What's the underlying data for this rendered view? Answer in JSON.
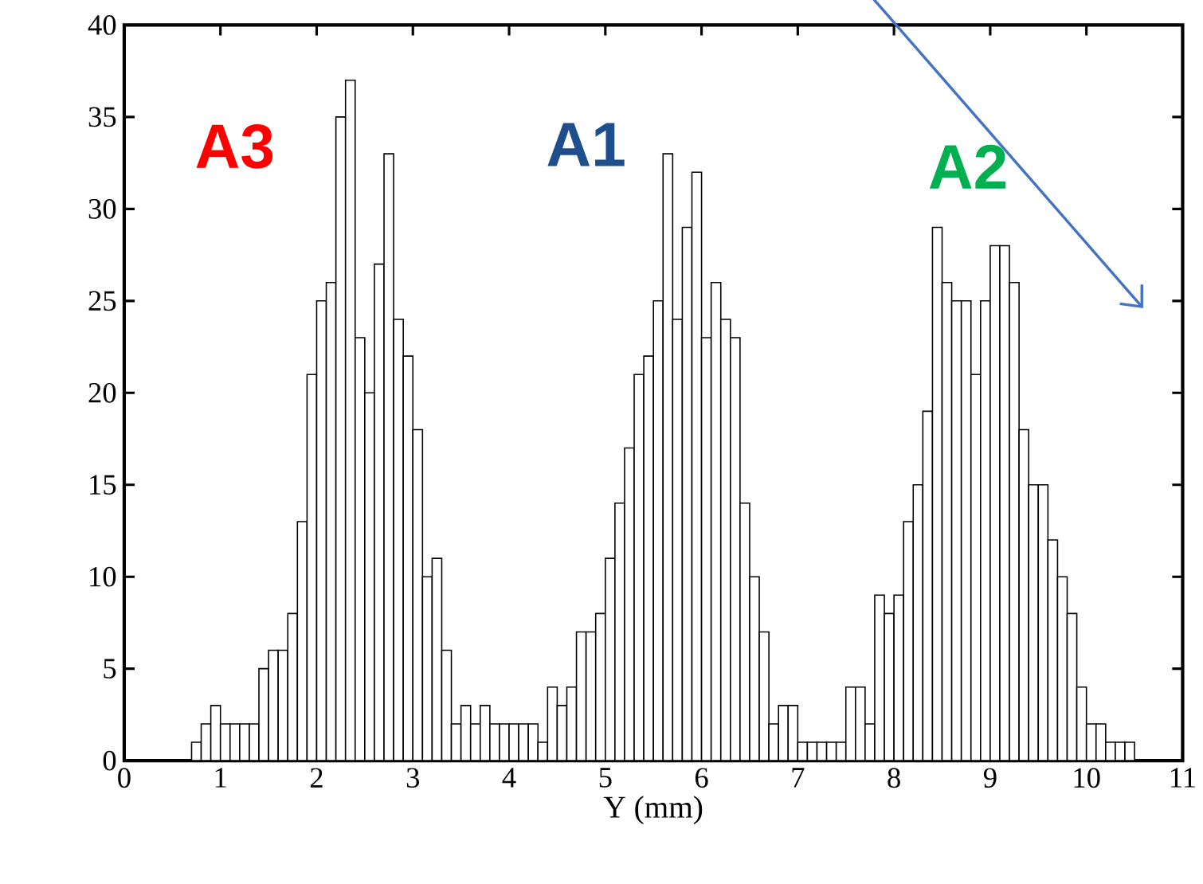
{
  "chart_data": {
    "type": "histogram",
    "xlabel": "Y (mm)",
    "bins": [
      0.7,
      0.8,
      0.9,
      1.0,
      1.1,
      1.2,
      1.3,
      1.4,
      1.5,
      1.6,
      1.7,
      1.8,
      1.9,
      2.0,
      2.1,
      2.2,
      2.3,
      2.4,
      2.5,
      2.6,
      2.7,
      2.8,
      2.9,
      3.0,
      3.1,
      3.2,
      3.3,
      3.4,
      3.5,
      3.6,
      3.7,
      3.8,
      3.9,
      4.0,
      4.1,
      4.2,
      4.3,
      4.4,
      4.5,
      4.6,
      4.7,
      4.8,
      4.9,
      5.0,
      5.1,
      5.2,
      5.3,
      5.4,
      5.5,
      5.6,
      5.7,
      5.8,
      5.9,
      6.0,
      6.1,
      6.2,
      6.3,
      6.4,
      6.5,
      6.6,
      6.7,
      6.8,
      6.9,
      7.0,
      7.1,
      7.2,
      7.3,
      7.4,
      7.5,
      7.6,
      7.7,
      7.8,
      7.9,
      8.0,
      8.1,
      8.2,
      8.3,
      8.4,
      8.5,
      8.6,
      8.7,
      8.8,
      8.9,
      9.0,
      9.1,
      9.2,
      9.3,
      9.4,
      9.5,
      9.6,
      9.7,
      9.8,
      9.9,
      10.0,
      10.1,
      10.2,
      10.3,
      10.4,
      10.5
    ],
    "values": [
      1,
      2,
      3,
      2,
      2,
      2,
      2,
      5,
      6,
      6,
      8,
      13,
      21,
      25,
      26,
      35,
      37,
      23,
      20,
      27,
      33,
      24,
      22,
      18,
      10,
      11,
      6,
      2,
      3,
      2,
      3,
      2,
      2,
      2,
      2,
      2,
      1,
      4,
      3,
      4,
      7,
      7,
      8,
      11,
      14,
      17,
      21,
      22,
      25,
      33,
      24,
      29,
      32,
      23,
      26,
      24,
      23,
      14,
      10,
      7,
      2,
      3,
      3,
      1,
      1,
      1,
      1,
      1,
      4,
      4,
      2,
      9,
      8,
      9,
      13,
      15,
      19,
      29,
      26,
      25,
      25,
      21,
      25,
      28,
      28,
      26,
      18,
      15,
      15,
      12,
      10,
      8,
      4,
      2,
      2,
      1,
      1,
      1
    ],
    "color": "#ffffff",
    "xlim": [
      0,
      11
    ],
    "xticks": [
      0,
      1,
      2,
      3,
      4,
      5,
      6,
      7,
      8,
      9,
      10,
      11
    ],
    "ylim": [
      0,
      40
    ],
    "yticks": [
      0,
      5,
      10,
      15,
      20,
      25,
      30,
      35,
      40
    ],
    "grid": false,
    "annotations": [
      "A3",
      "A1",
      "A2"
    ]
  }
}
